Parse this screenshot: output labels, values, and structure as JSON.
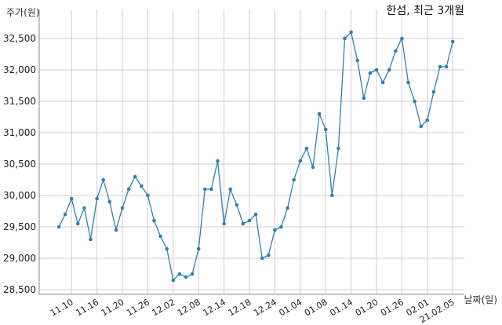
{
  "chart_data": {
    "type": "line",
    "title": "한섬, 최근 3개월",
    "ylabel": "주가(원)",
    "xlabel": "날짜(일)",
    "ylim": [
      28500,
      32700
    ],
    "yticks": [
      28500,
      29000,
      29500,
      30000,
      30500,
      31000,
      31500,
      32000,
      32500
    ],
    "ytick_labels": [
      "28,500",
      "29,000",
      "29,500",
      "30,000",
      "30,500",
      "31,000",
      "31,500",
      "32,000",
      "32,500"
    ],
    "xtick_labels": [
      "11.10",
      "11.16",
      "11.20",
      "11.26",
      "12.02",
      "12.08",
      "12.14",
      "12.18",
      "12.24",
      "01.04",
      "01.08",
      "01.14",
      "01.20",
      "01.26",
      "02.01",
      "21.02.05"
    ],
    "xtick_index": [
      2,
      6,
      10,
      14,
      18,
      22,
      26,
      30,
      34,
      38,
      42,
      46,
      50,
      54,
      58,
      62
    ],
    "grid": true,
    "series": [
      {
        "color": "#2f80b4",
        "values": [
          29500,
          29700,
          29950,
          29550,
          29800,
          29300,
          29950,
          30250,
          29900,
          29450,
          29800,
          30100,
          30300,
          30150,
          30000,
          29600,
          29350,
          29150,
          28650,
          28750,
          28700,
          28750,
          29150,
          30100,
          30100,
          30550,
          29550,
          30100,
          29850,
          29550,
          29600,
          29700,
          29000,
          29050,
          29450,
          29500,
          29800,
          30250,
          30550,
          30750,
          30450,
          31300,
          31050,
          30000,
          30750,
          32500,
          32600,
          32150,
          31550,
          31950,
          32000,
          31800,
          32000,
          32300,
          32500,
          31800,
          31500,
          31100,
          31200,
          31650,
          32050,
          32050,
          32450
        ]
      }
    ]
  }
}
